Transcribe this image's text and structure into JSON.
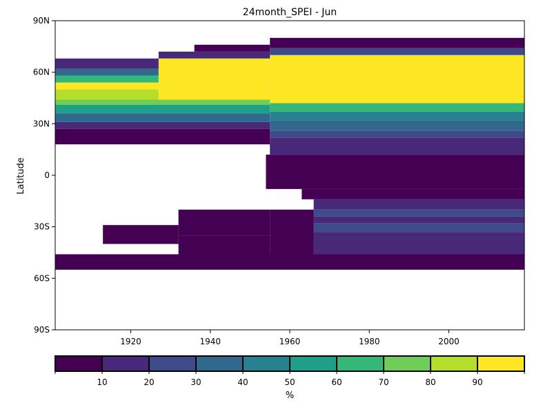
{
  "chart_data": {
    "type": "heatmap",
    "title": "24month_SPEI - Jun",
    "xlabel": "",
    "ylabel": "Latitude",
    "x_range": [
      1901,
      2019
    ],
    "y_range": [
      -90,
      90
    ],
    "x_ticks": [
      {
        "value": 1920,
        "label": "1920"
      },
      {
        "value": 1940,
        "label": "1940"
      },
      {
        "value": 1960,
        "label": "1960"
      },
      {
        "value": 1980,
        "label": "1980"
      },
      {
        "value": 2000,
        "label": "2000"
      }
    ],
    "y_ticks": [
      {
        "value": 90,
        "label": "90N"
      },
      {
        "value": 60,
        "label": "60N"
      },
      {
        "value": 30,
        "label": "30N"
      },
      {
        "value": 0,
        "label": "0"
      },
      {
        "value": -30,
        "label": "30S"
      },
      {
        "value": -60,
        "label": "60S"
      },
      {
        "value": -90,
        "label": "90S"
      }
    ],
    "colorbar": {
      "label": "%",
      "colors": [
        "#440154",
        "#482878",
        "#3e4a89",
        "#31688e",
        "#26828e",
        "#1f9e89",
        "#35b779",
        "#6ece58",
        "#b5de2b",
        "#fde725"
      ],
      "tick_labels": [
        "10",
        "20",
        "30",
        "40",
        "50",
        "60",
        "70",
        "80",
        "90"
      ],
      "range": [
        0,
        100
      ]
    },
    "cells": [
      {
        "x0": 1901,
        "x1": 2019,
        "y0": -55,
        "y1": -46,
        "v": 5
      },
      {
        "x0": 1932,
        "x1": 1955,
        "y0": -46,
        "y1": -35,
        "v": 5
      },
      {
        "x0": 1913,
        "x1": 1932,
        "y0": -40,
        "y1": -29,
        "v": 5
      },
      {
        "x0": 1932,
        "x1": 1955,
        "y0": -35,
        "y1": -20,
        "v": 5
      },
      {
        "x0": 1955,
        "x1": 1966,
        "y0": -46,
        "y1": -20,
        "v": 5
      },
      {
        "x0": 1966,
        "x1": 2019,
        "y0": -46,
        "y1": -33,
        "v": 15
      },
      {
        "x0": 1966,
        "x1": 2019,
        "y0": -33,
        "y1": -28,
        "v": 25
      },
      {
        "x0": 1966,
        "x1": 2019,
        "y0": -28,
        "y1": -24,
        "v": 15
      },
      {
        "x0": 1966,
        "x1": 2019,
        "y0": -24,
        "y1": -20,
        "v": 25
      },
      {
        "x0": 1966,
        "x1": 2019,
        "y0": -20,
        "y1": -14,
        "v": 15
      },
      {
        "x0": 1963,
        "x1": 2019,
        "y0": -14,
        "y1": -8,
        "v": 5
      },
      {
        "x0": 1954,
        "x1": 2019,
        "y0": -8,
        "y1": -2,
        "v": 5
      },
      {
        "x0": 1954,
        "x1": 2019,
        "y0": -2,
        "y1": 12,
        "v": 5
      },
      {
        "x0": 1955,
        "x1": 2019,
        "y0": 12,
        "y1": 22,
        "v": 15
      },
      {
        "x0": 1955,
        "x1": 2019,
        "y0": 22,
        "y1": 26,
        "v": 25
      },
      {
        "x0": 1955,
        "x1": 2019,
        "y0": 26,
        "y1": 32,
        "v": 35
      },
      {
        "x0": 1955,
        "x1": 2019,
        "y0": 32,
        "y1": 37,
        "v": 45
      },
      {
        "x0": 1955,
        "x1": 2019,
        "y0": 37,
        "y1": 42,
        "v": 65
      },
      {
        "x0": 1955,
        "x1": 2019,
        "y0": 42,
        "y1": 70,
        "v": 95
      },
      {
        "x0": 1955,
        "x1": 2019,
        "y0": 70,
        "y1": 74,
        "v": 25
      },
      {
        "x0": 1955,
        "x1": 2019,
        "y0": 74,
        "y1": 80,
        "v": 5
      },
      {
        "x0": 1901,
        "x1": 1955,
        "y0": 18,
        "y1": 27,
        "v": 5
      },
      {
        "x0": 1901,
        "x1": 1955,
        "y0": 27,
        "y1": 31,
        "v": 15
      },
      {
        "x0": 1901,
        "x1": 1955,
        "y0": 31,
        "y1": 36,
        "v": 35
      },
      {
        "x0": 1901,
        "x1": 1955,
        "y0": 36,
        "y1": 41,
        "v": 55
      },
      {
        "x0": 1901,
        "x1": 1955,
        "y0": 41,
        "y1": 44,
        "v": 75
      },
      {
        "x0": 1901,
        "x1": 1927,
        "y0": 44,
        "y1": 50,
        "v": 85
      },
      {
        "x0": 1927,
        "x1": 1955,
        "y0": 44,
        "y1": 68,
        "v": 95
      },
      {
        "x0": 1901,
        "x1": 1927,
        "y0": 50,
        "y1": 54,
        "v": 95
      },
      {
        "x0": 1901,
        "x1": 1927,
        "y0": 54,
        "y1": 58,
        "v": 65
      },
      {
        "x0": 1901,
        "x1": 1927,
        "y0": 58,
        "y1": 62,
        "v": 35
      },
      {
        "x0": 1901,
        "x1": 1927,
        "y0": 62,
        "y1": 68,
        "v": 15
      },
      {
        "x0": 1927,
        "x1": 1955,
        "y0": 68,
        "y1": 72,
        "v": 15
      },
      {
        "x0": 1936,
        "x1": 1955,
        "y0": 72,
        "y1": 76,
        "v": 5
      }
    ]
  }
}
